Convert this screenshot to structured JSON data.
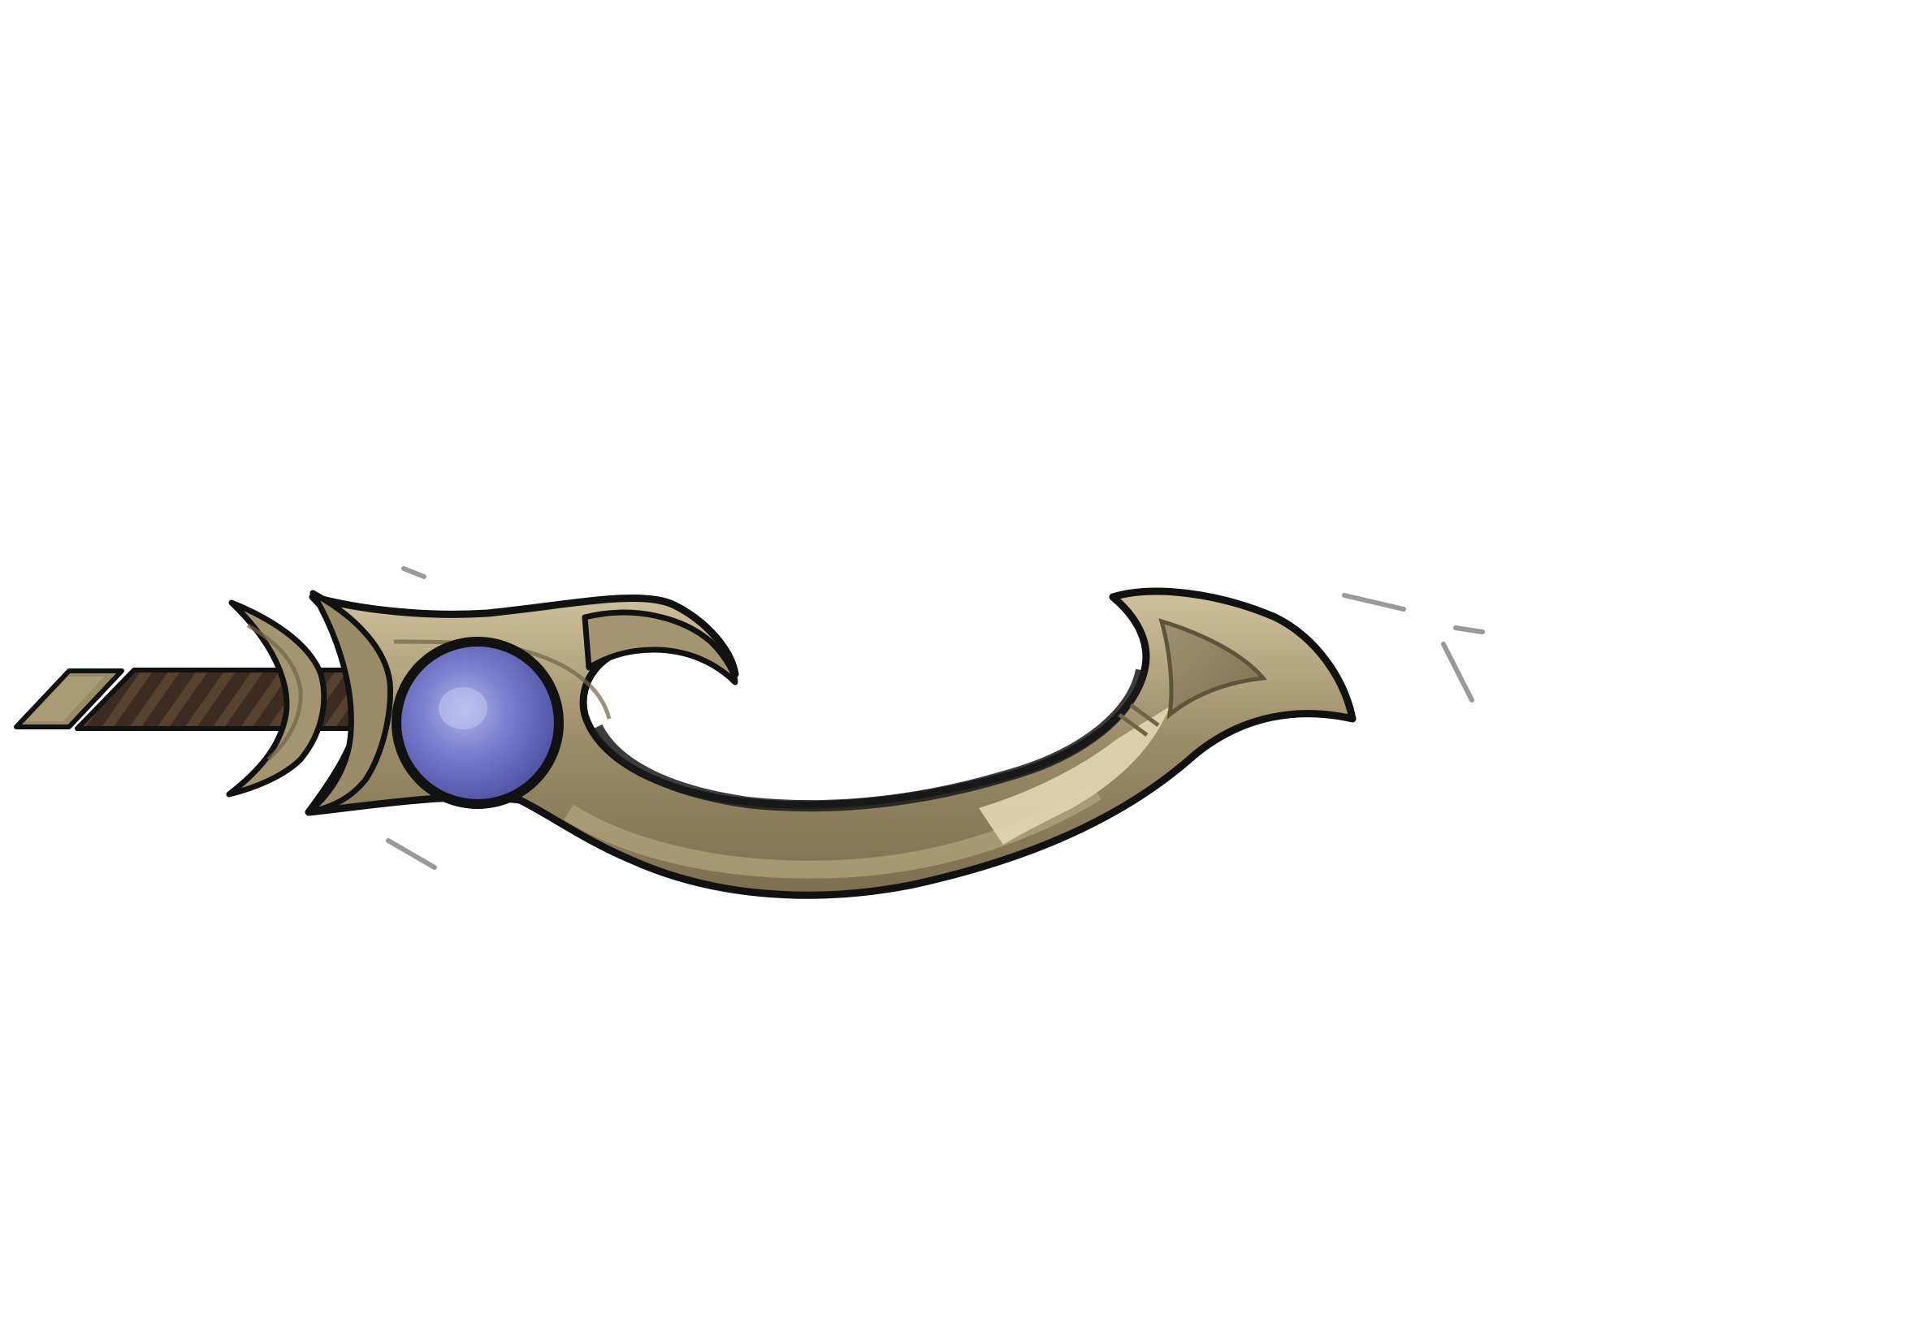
{
  "scene": {
    "background_color": "#ffffff",
    "item": {
      "kind": "curved-blade-weapon-sprite",
      "colors": {
        "outline": "#111111",
        "blade_base": "#8f8262",
        "blade_light": "#c8bb93",
        "blade_highlight": "#e2d6b4",
        "blade_shadow": "#6f6448",
        "handle_wrap": "#3b2b20",
        "handle_stripe": "#5a4434",
        "pommel": "#8f8262",
        "gem_core": "#9a9de0",
        "gem_mid": "#6a6cc0",
        "gem_edge": "#4a4c9a",
        "motion_lines": "#9a9a9a"
      },
      "icons": [
        "sword-icon",
        "gem-icon",
        "motion-lines-icon"
      ]
    }
  }
}
